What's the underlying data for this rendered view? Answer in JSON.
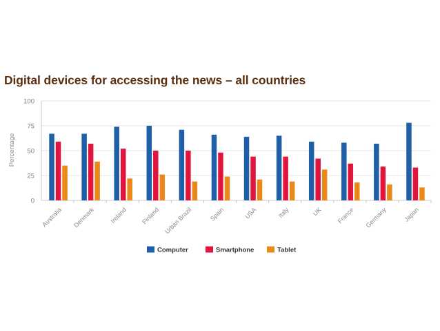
{
  "chart_data": {
    "type": "bar",
    "title": "Digital devices for accessing the news – all countries",
    "xlabel": "",
    "ylabel": "Percentage",
    "ylim": [
      0,
      100
    ],
    "yticks": [
      0,
      25,
      50,
      75,
      100
    ],
    "grid": true,
    "legend_position": "bottom-center",
    "categories": [
      "Australia",
      "Denmark",
      "Ireland",
      "Finland",
      "Urban Brazil",
      "Spain",
      "USA",
      "Italy",
      "UK",
      "France",
      "Germany",
      "Japan"
    ],
    "series": [
      {
        "name": "Computer",
        "color": "#1f5fa8",
        "values": [
          67,
          67,
          74,
          75,
          71,
          66,
          64,
          65,
          59,
          58,
          57,
          78
        ]
      },
      {
        "name": "Smartphone",
        "color": "#e0143c",
        "values": [
          59,
          57,
          52,
          50,
          50,
          48,
          44,
          44,
          42,
          37,
          34,
          33
        ]
      },
      {
        "name": "Tablet",
        "color": "#e8891a",
        "values": [
          35,
          39,
          22,
          26,
          19,
          24,
          21,
          19,
          31,
          18,
          16,
          13
        ]
      }
    ]
  },
  "style": {
    "title_color": "#5a2e0e",
    "axis_color": "#c8c8c8",
    "grid_color": "#e6e6e6"
  }
}
